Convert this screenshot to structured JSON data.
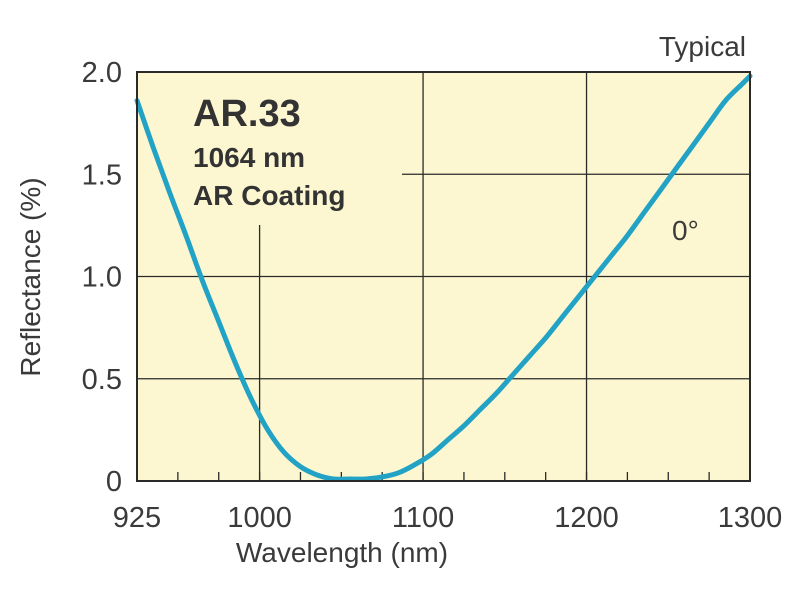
{
  "chart_data": {
    "type": "line",
    "title": "AR.33",
    "subtitle_lines": [
      "1064 nm",
      "AR Coating"
    ],
    "note": "Typical",
    "xlabel": "Wavelength (nm)",
    "ylabel": "Reflectance (%)",
    "xlim": [
      925,
      1300
    ],
    "ylim": [
      0,
      2.0
    ],
    "x_ticks": [
      925,
      1000,
      1100,
      1200,
      1300
    ],
    "y_ticks": [
      0,
      0.5,
      1.0,
      1.5,
      2.0
    ],
    "x_tick_labels": [
      "925",
      "1000",
      "1100",
      "1200",
      "1300"
    ],
    "y_tick_labels": [
      "0",
      "0.5",
      "1.0",
      "1.5",
      "2.0"
    ],
    "grid": true,
    "plot_background": "#fcf7d1",
    "series": [
      {
        "name": "0°",
        "color": "#22a3c6",
        "x": [
          925,
          935,
          945,
          955,
          965,
          975,
          985,
          995,
          1005,
          1015,
          1025,
          1035,
          1045,
          1055,
          1065,
          1075,
          1085,
          1095,
          1105,
          1115,
          1125,
          1135,
          1145,
          1155,
          1165,
          1175,
          1185,
          1195,
          1205,
          1215,
          1225,
          1235,
          1245,
          1255,
          1265,
          1275,
          1285,
          1295,
          1300
        ],
        "y": [
          1.86,
          1.63,
          1.41,
          1.2,
          0.98,
          0.78,
          0.58,
          0.4,
          0.25,
          0.14,
          0.07,
          0.03,
          0.01,
          0.01,
          0.01,
          0.02,
          0.04,
          0.08,
          0.13,
          0.2,
          0.27,
          0.35,
          0.43,
          0.52,
          0.61,
          0.7,
          0.8,
          0.9,
          1.0,
          1.1,
          1.2,
          1.31,
          1.42,
          1.53,
          1.64,
          1.75,
          1.86,
          1.94,
          1.98
        ]
      }
    ]
  }
}
